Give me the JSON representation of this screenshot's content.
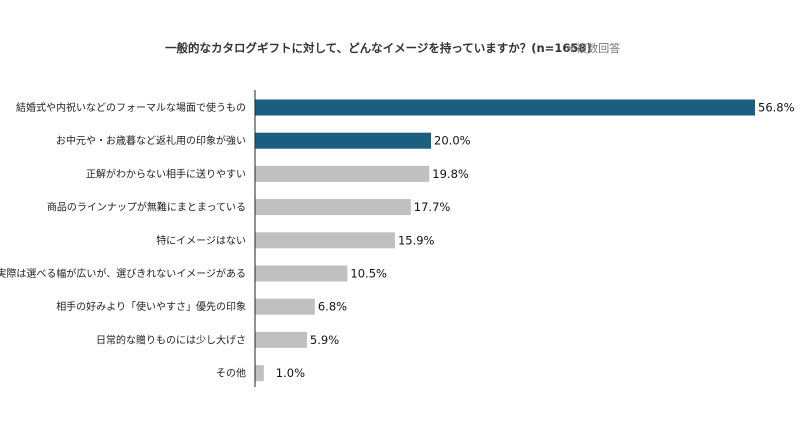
{
  "chart_data": {
    "type": "bar",
    "orientation": "horizontal",
    "title": "一般的なカタログギフトに対して、どんなイメージを持っていますか？(n=1658)",
    "note": "※複数回答",
    "categories": [
      "結婚式や内祝いなどのフォーマルな場面で使うもの",
      "お中元や・お歳暮など返礼用の印象が強い",
      "正解がわからない相手に送りやすい",
      "商品のラインナップが無難にまとまっている",
      "特にイメージはない",
      "実際は選べる幅が広いが、選びきれないイメージがある",
      "相手の好みより「使いやすさ」優先の印象",
      "日常的な贈りものには少し大げさ",
      "その他"
    ],
    "values": [
      56.8,
      20.0,
      19.8,
      17.7,
      15.9,
      10.5,
      6.8,
      5.9,
      1.0
    ],
    "value_labels": [
      "56.8%",
      "20.0%",
      "19.8%",
      "17.7%",
      "15.9%",
      "10.5%",
      "6.8%",
      "5.9%",
      "1.0%"
    ],
    "xlim": [
      0,
      56.8
    ],
    "grid": false,
    "legend": "none",
    "highlight_color": "#1b5e80",
    "default_color": "#c0c0c0",
    "highlighted_indices": [
      0,
      1
    ]
  }
}
